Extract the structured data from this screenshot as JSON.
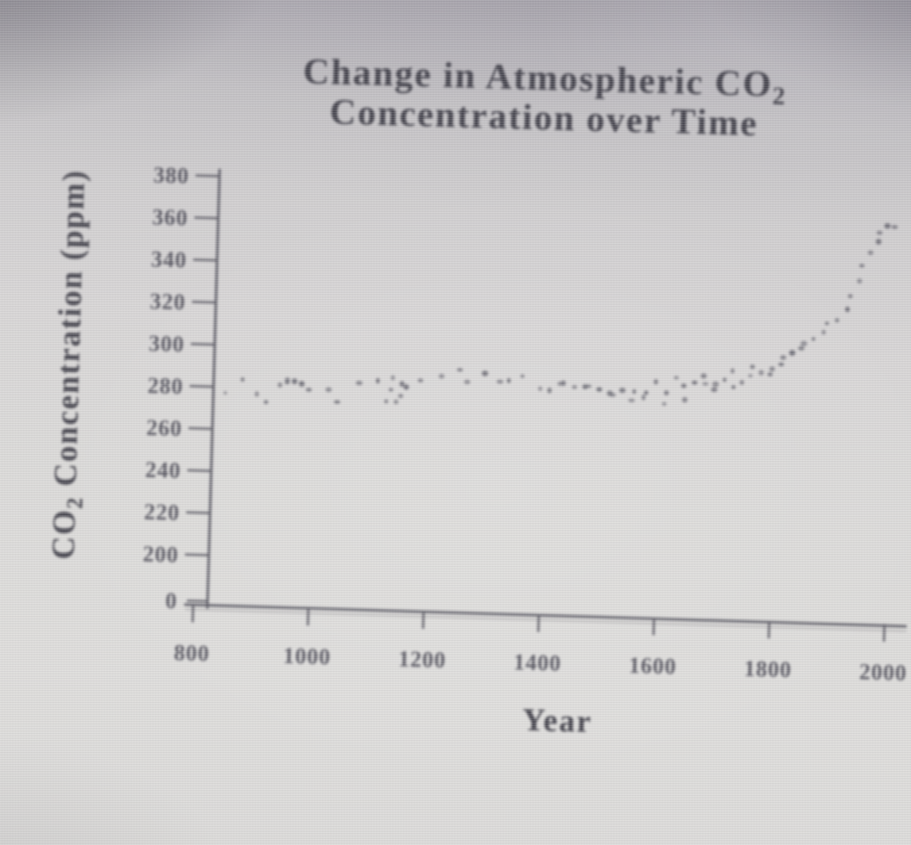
{
  "chart_data": {
    "type": "scatter",
    "title": "Change in Atmospheric CO2 Concentration over Time",
    "title_line1_main": "Change in Atmospheric CO",
    "title_line1_sub": "2",
    "title_line2": "Concentration over Time",
    "xlabel": "Year",
    "ylabel": {
      "pre": "CO",
      "sub": "2",
      "post": "Concentration (ppm)"
    },
    "x_ticks": [
      800,
      1000,
      1200,
      1400,
      1600,
      1800,
      2000
    ],
    "y_ticks": [
      380,
      360,
      340,
      320,
      300,
      280,
      260,
      240,
      220,
      200
    ],
    "y_axis_break_label": "0",
    "xlim": [
      800,
      2000
    ],
    "ylim_main": [
      200,
      380
    ],
    "grid": false,
    "legend": false,
    "points_unit": [
      "year",
      "co2_ppm"
    ],
    "points": [
      [
        851,
        276
      ],
      [
        876,
        285
      ],
      [
        897,
        278
      ],
      [
        921,
        274
      ],
      [
        940,
        282
      ],
      [
        948,
        283
      ],
      [
        956,
        284
      ],
      [
        964,
        283
      ],
      [
        972,
        282
      ],
      [
        980,
        281
      ],
      [
        988,
        281
      ],
      [
        1030,
        281
      ],
      [
        1041,
        275
      ],
      [
        1074,
        284
      ],
      [
        1114,
        285
      ],
      [
        1125,
        275
      ],
      [
        1131,
        286
      ],
      [
        1136,
        280
      ],
      [
        1141,
        274
      ],
      [
        1146,
        285
      ],
      [
        1152,
        279
      ],
      [
        1157,
        283
      ],
      [
        1189,
        286
      ],
      [
        1221,
        288
      ],
      [
        1248,
        291
      ],
      [
        1269,
        285
      ],
      [
        1295,
        289
      ],
      [
        1317,
        285
      ],
      [
        1340,
        288
      ],
      [
        1359,
        290
      ],
      [
        1386,
        284
      ],
      [
        1410,
        283
      ],
      [
        1423,
        286
      ],
      [
        1437,
        286
      ],
      [
        1452,
        284
      ],
      [
        1466,
        284
      ],
      [
        1480,
        284
      ],
      [
        1494,
        285
      ],
      [
        1508,
        283
      ],
      [
        1521,
        282
      ],
      [
        1533,
        284
      ],
      [
        1545,
        279
      ],
      [
        1557,
        283
      ],
      [
        1569,
        280
      ],
      [
        1581,
        282
      ],
      [
        1593,
        287
      ],
      [
        1604,
        279
      ],
      [
        1615,
        284
      ],
      [
        1627,
        291
      ],
      [
        1636,
        287
      ],
      [
        1646,
        280
      ],
      [
        1658,
        288
      ],
      [
        1669,
        291
      ],
      [
        1680,
        287
      ],
      [
        1691,
        284
      ],
      [
        1701,
        289
      ],
      [
        1712,
        291
      ],
      [
        1721,
        295
      ],
      [
        1731,
        287
      ],
      [
        1741,
        289
      ],
      [
        1751,
        292
      ],
      [
        1762,
        296
      ],
      [
        1773,
        293
      ],
      [
        1784,
        292
      ],
      [
        1795,
        297
      ],
      [
        1806,
        299
      ],
      [
        1817,
        302
      ],
      [
        1828,
        304
      ],
      [
        1839,
        306
      ],
      [
        1851,
        308
      ],
      [
        1863,
        310
      ],
      [
        1876,
        313
      ],
      [
        1889,
        317
      ],
      [
        1902,
        321
      ],
      [
        1915,
        326
      ],
      [
        1927,
        332
      ],
      [
        1938,
        339
      ],
      [
        1949,
        346
      ],
      [
        1959,
        352
      ],
      [
        1968,
        357
      ],
      [
        1977,
        361
      ],
      [
        1986,
        364
      ],
      [
        1994,
        366
      ]
    ]
  },
  "style": {
    "ink": "#35343e",
    "axis": "#4a4954",
    "point": "#4e4d59",
    "photo_bg_dark": "#98949e",
    "photo_bg_light": "#dedddb"
  }
}
